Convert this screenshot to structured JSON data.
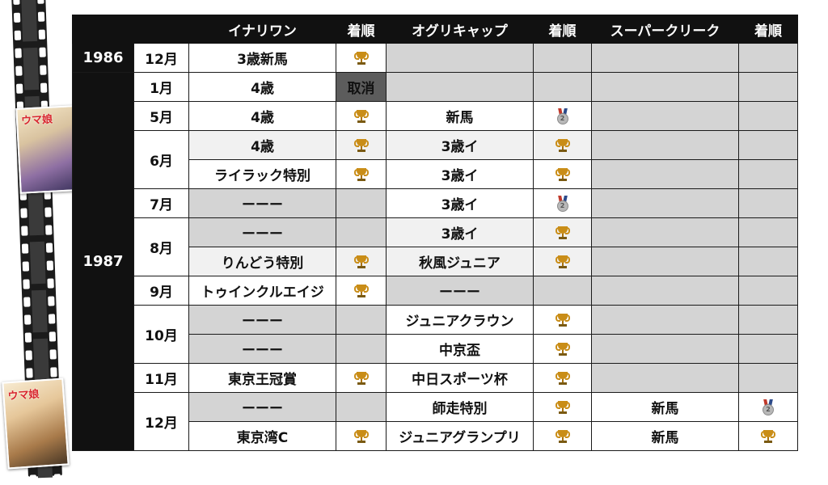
{
  "headers": [
    "",
    "",
    "イナリワン",
    "着順",
    "オグリキャップ",
    "着順",
    "スーパークリーク",
    "着順"
  ],
  "years": [
    "1986",
    "1987"
  ],
  "months": [
    "12月",
    "1月",
    "5月",
    "6月",
    "7月",
    "8月",
    "9月",
    "10月",
    "11月",
    "12月"
  ],
  "races": {
    "inari": [
      "3歳新馬",
      "4歳",
      "4歳",
      "4歳",
      "ライラック特別",
      "ーーー",
      "ーーー",
      "りんどう特別",
      "トゥインクルエイジ",
      "ーーー",
      "ーーー",
      "東京王冠賞",
      "ーーー",
      "東京湾C"
    ],
    "oguri": [
      "新馬",
      "3歳イ",
      "3歳イ",
      "3歳イ",
      "3歳イ",
      "秋風ジュニア",
      "ーーー",
      "ジュニアクラウン",
      "中京盃",
      "中日スポーツ杯",
      "師走特別",
      "ジュニアグランプリ"
    ],
    "super": [
      "新馬",
      "新馬"
    ]
  },
  "cancel_label": "取消",
  "icons": {
    "win": "trophy-icon",
    "second": "second-place-medal-icon"
  },
  "colors": {
    "header_bg": "#111111",
    "gray_cell": "#d4d4d4",
    "cancel_bg": "#5c5c5c",
    "trophy": "#c98d17"
  },
  "covers": {
    "title": "ウマ娘"
  }
}
